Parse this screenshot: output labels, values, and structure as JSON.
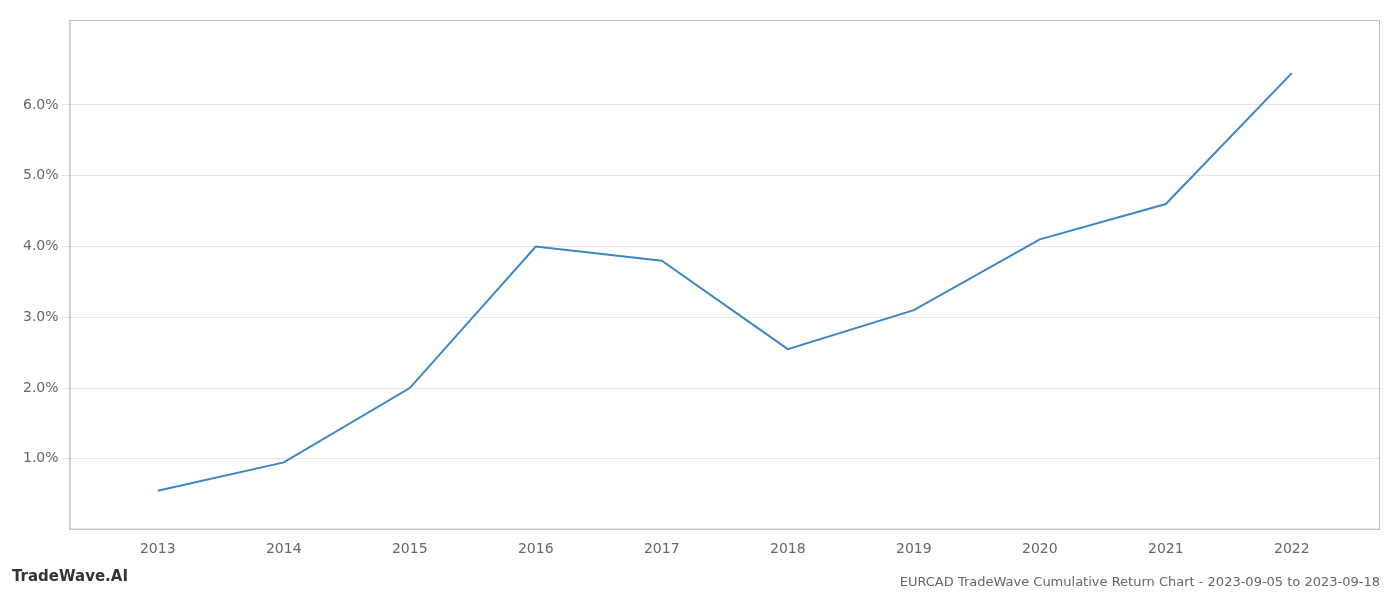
{
  "chart_data": {
    "type": "line",
    "title": "EURCAD TradeWave Cumulative Return Chart - 2023-09-05 to 2023-09-18",
    "annotations": [
      "TradeWave.AI"
    ],
    "x": [
      2013,
      2014,
      2015,
      2016,
      2017,
      2018,
      2019,
      2020,
      2021,
      2022
    ],
    "values": [
      0.55,
      0.95,
      2.0,
      4.0,
      3.8,
      2.55,
      3.1,
      4.1,
      4.6,
      6.45
    ],
    "color": "#3a86c8",
    "xlim": [
      2012.3,
      2022.7
    ],
    "xticks": [
      2013,
      2014,
      2015,
      2016,
      2017,
      2018,
      2019,
      2020,
      2021,
      2022
    ],
    "ylim": [
      0,
      7.2
    ],
    "yticks": [
      {
        "value": 1.0,
        "label": "1.0%"
      },
      {
        "value": 2.0,
        "label": "2.0%"
      },
      {
        "value": 3.0,
        "label": "3.0%"
      },
      {
        "value": 4.0,
        "label": "4.0%"
      },
      {
        "value": 5.0,
        "label": "5.0%"
      },
      {
        "value": 6.0,
        "label": "6.0%"
      }
    ],
    "grid": "y"
  }
}
